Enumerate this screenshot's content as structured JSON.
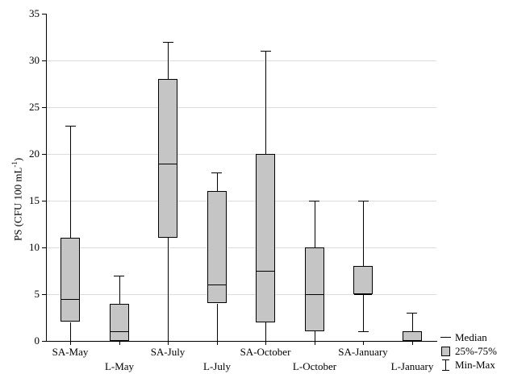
{
  "chart_data": {
    "type": "boxplot",
    "title": "",
    "ylabel": {
      "prefix": "PS (CFU 100 mL",
      "sup": "-1",
      "suffix": ")"
    },
    "xlabel": "",
    "ylim": [
      0,
      35
    ],
    "yticks": [
      0,
      5,
      10,
      15,
      20,
      25,
      30,
      35
    ],
    "gridlines": [
      5,
      10,
      15,
      20,
      25,
      30
    ],
    "grid": "horizontal-only",
    "categories": [
      "SA-May",
      "L-May",
      "SA-July",
      "L-July",
      "SA-October",
      "L-October",
      "SA-January",
      "L-January"
    ],
    "series": [
      {
        "name": "SA-May",
        "min": 0,
        "q1": 2,
        "median": 4.5,
        "q3": 11,
        "max": 23
      },
      {
        "name": "L-May",
        "min": 0,
        "q1": 0,
        "median": 1,
        "q3": 4,
        "max": 7
      },
      {
        "name": "SA-July",
        "min": 0,
        "q1": 11,
        "median": 19,
        "q3": 28,
        "max": 32
      },
      {
        "name": "L-July",
        "min": 0,
        "q1": 4,
        "median": 6,
        "q3": 16,
        "max": 18
      },
      {
        "name": "SA-October",
        "min": 0,
        "q1": 2,
        "median": 7.5,
        "q3": 20,
        "max": 31
      },
      {
        "name": "L-October",
        "min": 0,
        "q1": 1,
        "median": 5,
        "q3": 10,
        "max": 15
      },
      {
        "name": "SA-January",
        "min": 1,
        "q1": 5,
        "median": 5,
        "q3": 8,
        "max": 15
      },
      {
        "name": "L-January",
        "min": 0,
        "q1": 0,
        "median": 0,
        "q3": 1,
        "max": 3
      }
    ],
    "legend": [
      {
        "symbol": "median-line",
        "label": "Median"
      },
      {
        "symbol": "iqr-box",
        "label": "25%-75%"
      },
      {
        "symbol": "minmax-bar",
        "label": "Min-Max"
      }
    ],
    "legend_position": "bottom-right",
    "colors": {
      "box_fill": "#c5c5c5",
      "box_border": "#000000",
      "gridline": "#dcdcdc",
      "axis": "#000000",
      "background": "#ffffff"
    }
  }
}
